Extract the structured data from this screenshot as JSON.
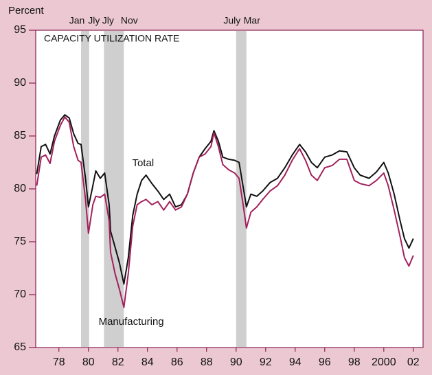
{
  "chart_data": {
    "type": "line",
    "title": "CAPACITY UTILIZATION RATE",
    "ylabel": "Percent",
    "background": "#ecc9d2",
    "annotations": [
      {
        "text": "Total",
        "x": 1984.2,
        "y": 82.4
      },
      {
        "text": "Manufacturing",
        "x": 1983.4,
        "y": 67.4
      }
    ],
    "recessions": [
      {
        "start": 1980.0,
        "end": 1980.55,
        "start_label": "Jan",
        "end_label": "Jly"
      },
      {
        "start": 1981.55,
        "end": 1982.9,
        "start_label": "Jly",
        "end_label": "Nov"
      },
      {
        "start": 1990.5,
        "end": 1991.2,
        "start_label": "July",
        "end_label": "Mar"
      }
    ],
    "recession_color": "#cfcfcf",
    "x": [
      1977.0,
      1977.3,
      1977.6,
      1977.9,
      1978.2,
      1978.6,
      1978.9,
      1979.2,
      1979.5,
      1979.8,
      1980.0,
      1980.3,
      1980.5,
      1980.8,
      1981.0,
      1981.3,
      1981.6,
      1981.9,
      1982.0,
      1982.3,
      1982.6,
      1982.9,
      1983.2,
      1983.5,
      1983.8,
      1984.1,
      1984.4,
      1984.8,
      1985.2,
      1985.6,
      1986.0,
      1986.4,
      1986.8,
      1987.2,
      1987.6,
      1988.0,
      1988.4,
      1988.8,
      1989.0,
      1989.3,
      1989.6,
      1990.0,
      1990.4,
      1990.7,
      1991.0,
      1991.2,
      1991.5,
      1991.9,
      1992.3,
      1992.8,
      1993.3,
      1993.8,
      1994.3,
      1994.8,
      1995.2,
      1995.6,
      1996.0,
      1996.5,
      1997.0,
      1997.5,
      1998.0,
      1998.5,
      1998.9,
      1999.5,
      2000.0,
      2000.5,
      2000.8,
      2001.2,
      2001.6,
      2001.9,
      2002.2,
      2002.5
    ],
    "series": [
      {
        "name": "Total",
        "color": "#111111",
        "values": [
          81.4,
          84.0,
          84.2,
          83.3,
          85.0,
          86.5,
          87.0,
          86.7,
          85.2,
          84.3,
          84.2,
          81.0,
          78.3,
          80.3,
          81.7,
          81.0,
          81.5,
          78.5,
          76.0,
          74.5,
          73.0,
          71.0,
          73.5,
          77.5,
          79.5,
          80.8,
          81.3,
          80.5,
          79.8,
          79.0,
          79.5,
          78.3,
          78.5,
          79.5,
          81.5,
          83.0,
          83.8,
          84.5,
          85.5,
          84.5,
          83.0,
          82.8,
          82.7,
          82.5,
          80.0,
          78.3,
          79.5,
          79.3,
          79.8,
          80.6,
          81.0,
          82.0,
          83.2,
          84.2,
          83.5,
          82.5,
          82.0,
          83.0,
          83.2,
          83.6,
          83.5,
          82.0,
          81.3,
          81.0,
          81.6,
          82.5,
          81.5,
          79.5,
          77.0,
          75.3,
          74.4,
          75.3
        ]
      },
      {
        "name": "Manufacturing",
        "color": "#a3205c",
        "values": [
          80.3,
          83.0,
          83.2,
          82.4,
          84.5,
          86.0,
          86.8,
          86.3,
          84.0,
          82.7,
          82.5,
          79.0,
          75.8,
          78.5,
          79.3,
          79.2,
          79.5,
          77.0,
          74.0,
          72.0,
          70.5,
          68.8,
          72.0,
          76.5,
          78.5,
          78.8,
          79.0,
          78.5,
          78.8,
          78.0,
          78.8,
          78.0,
          78.3,
          79.5,
          81.5,
          83.0,
          83.3,
          84.0,
          85.3,
          84.0,
          82.3,
          81.8,
          81.5,
          81.0,
          78.3,
          76.3,
          77.8,
          78.3,
          79.0,
          79.8,
          80.3,
          81.3,
          82.7,
          83.8,
          82.7,
          81.3,
          80.8,
          82.0,
          82.2,
          82.8,
          82.8,
          80.8,
          80.5,
          80.3,
          80.8,
          81.5,
          80.3,
          78.0,
          75.5,
          73.5,
          72.7,
          73.7
        ]
      }
    ],
    "xlim": [
      1976.93,
      2003.16
    ],
    "ylim": [
      65,
      95
    ],
    "yticks": [
      65,
      70,
      75,
      80,
      85,
      90,
      95
    ],
    "xticks": [
      {
        "value": 1978.5,
        "label": "78"
      },
      {
        "value": 1980.5,
        "label": "80"
      },
      {
        "value": 1982.5,
        "label": "82"
      },
      {
        "value": 1984.5,
        "label": "84"
      },
      {
        "value": 1986.5,
        "label": "86"
      },
      {
        "value": 1988.5,
        "label": "88"
      },
      {
        "value": 1990.5,
        "label": "90"
      },
      {
        "value": 1992.5,
        "label": "92"
      },
      {
        "value": 1994.5,
        "label": "94"
      },
      {
        "value": 1996.5,
        "label": "96"
      },
      {
        "value": 1998.5,
        "label": "98"
      },
      {
        "value": 2000.5,
        "label": "2000"
      },
      {
        "value": 2002.5,
        "label": "02"
      }
    ]
  }
}
